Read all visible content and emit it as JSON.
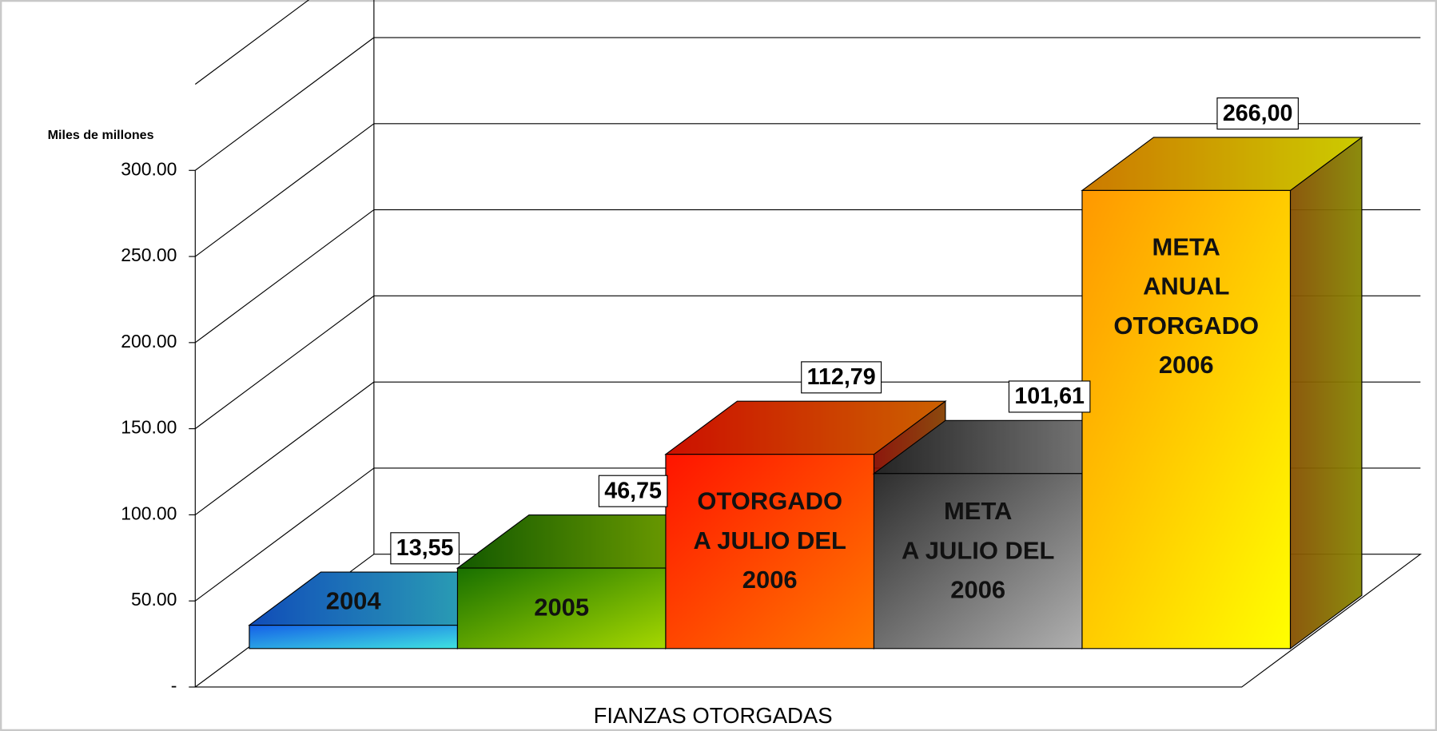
{
  "chart_data": {
    "type": "bar3d",
    "y_axis_label": "Miles de millones",
    "x_axis_label": "FIANZAS OTORGADAS",
    "categories": [
      "2004",
      "2005",
      "OTORGADO\nA JULIO DEL\n2006",
      "META\nA JULIO DEL\n2006",
      "META\nANUAL\nOTORGADO\n2006"
    ],
    "values": [
      13.55,
      46.75,
      112.79,
      101.61,
      266.0
    ],
    "value_labels": [
      "13,55",
      "46,75",
      "112,79",
      "101,61",
      "266,00"
    ],
    "colors": [
      [
        "#1560e8",
        "#3fe3e0"
      ],
      [
        "#187000",
        "#a6d800"
      ],
      [
        "#ff1400",
        "#ff7a00"
      ],
      [
        "#2e2e2e",
        "#b0b0b0"
      ],
      [
        "#ff9800",
        "#ffff00"
      ]
    ],
    "ylim": [
      0,
      350
    ],
    "yticks": [
      {
        "value": 0,
        "label": "-"
      },
      {
        "value": 50,
        "label": "50.00"
      },
      {
        "value": 100,
        "label": "100.00"
      },
      {
        "value": 150,
        "label": "150.00"
      },
      {
        "value": 200,
        "label": "200.00"
      },
      {
        "value": 250,
        "label": "250.00"
      },
      {
        "value": 300,
        "label": "300.00"
      }
    ],
    "grid": true
  }
}
